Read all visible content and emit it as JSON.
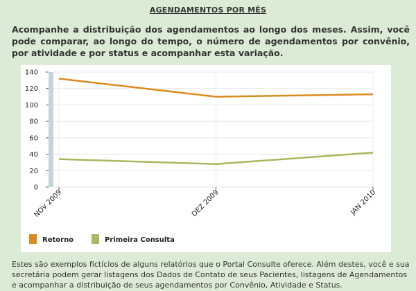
{
  "page": {
    "title": "AGENDAMENTOS POR MÊS",
    "intro": "Acompanhe a distribuição dos agendamentos ao longo dos meses. Assim, você pode comparar, ao longo do tempo, o número de agendamentos por convênio, por atividade e por status e acompanhar esta variação.",
    "footer": "Estes são exemplos fictícios de alguns relatórios que o Portal Consulte oferece. Além destes, você e sua secretária podem gerar listagens dos Dados de Contato de seus Pacientes, listagens de Agendamentos e acompanhar a distribuição de seus agendamentos por Convênio, Atividade e Status."
  },
  "chart_data": {
    "type": "line",
    "categories": [
      "NOV 2009",
      "DEZ 2009",
      "JAN 2010"
    ],
    "series": [
      {
        "name": "Retorno",
        "values": [
          132,
          110,
          113
        ],
        "color": "#dd8a1c"
      },
      {
        "name": "Primeira Consulta",
        "values": [
          34,
          28,
          42
        ],
        "color": "#a3bb5c"
      }
    ],
    "yticks": [
      0,
      20,
      40,
      60,
      80,
      100,
      120,
      140
    ],
    "ylim": [
      0,
      140
    ],
    "grid": true,
    "legend": "bottom-left",
    "title": "",
    "xlabel": "",
    "ylabel": ""
  }
}
